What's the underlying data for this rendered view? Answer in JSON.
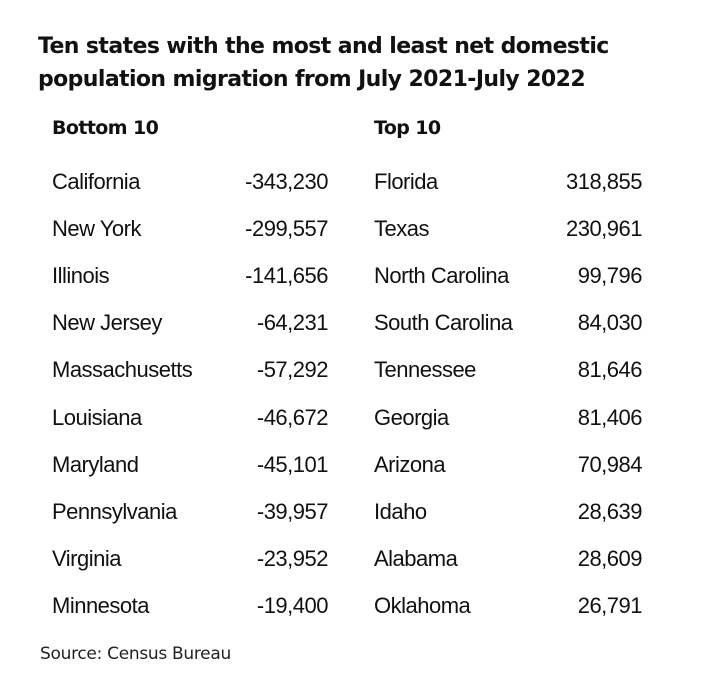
{
  "chart_data": {
    "type": "table",
    "title": "Ten states with the most and least net domestic population migration from July 2021-July 2022",
    "columns": [
      {
        "heading": "Bottom 10",
        "rows": [
          {
            "state": "California",
            "value": "-343,230"
          },
          {
            "state": "New York",
            "value": "-299,557"
          },
          {
            "state": "Illinois",
            "value": "-141,656"
          },
          {
            "state": "New Jersey",
            "value": "-64,231"
          },
          {
            "state": "Massachusetts",
            "value": "-57,292"
          },
          {
            "state": "Louisiana",
            "value": "-46,672"
          },
          {
            "state": "Maryland",
            "value": "-45,101"
          },
          {
            "state": "Pennsylvania",
            "value": "-39,957"
          },
          {
            "state": "Virginia",
            "value": "-23,952"
          },
          {
            "state": "Minnesota",
            "value": "-19,400"
          }
        ]
      },
      {
        "heading": "Top 10",
        "rows": [
          {
            "state": "Florida",
            "value": "318,855"
          },
          {
            "state": "Texas",
            "value": "230,961"
          },
          {
            "state": "North Carolina",
            "value": "99,796"
          },
          {
            "state": "South Carolina",
            "value": "84,030"
          },
          {
            "state": "Tennessee",
            "value": "81,646"
          },
          {
            "state": "Georgia",
            "value": "81,406"
          },
          {
            "state": "Arizona",
            "value": "70,984"
          },
          {
            "state": "Idaho",
            "value": "28,639"
          },
          {
            "state": "Alabama",
            "value": "28,609"
          },
          {
            "state": "Oklahoma",
            "value": "26,791"
          }
        ]
      }
    ],
    "source": "Source: Census Bureau"
  }
}
